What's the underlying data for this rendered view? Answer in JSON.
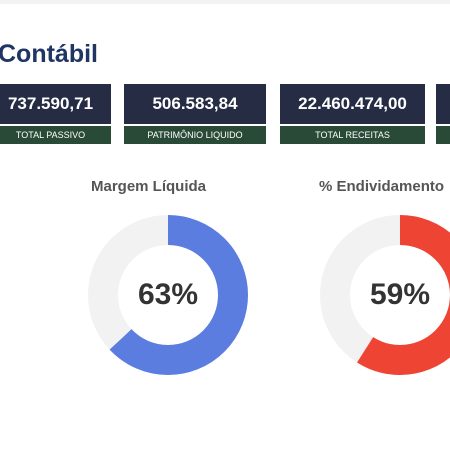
{
  "dashboard": {
    "title": "Contábil",
    "cards": [
      {
        "value": "737.590,71",
        "label": "TOTAL PASSIVO"
      },
      {
        "value": "506.583,84",
        "label": "PATRIMÔNIO LIQUIDO"
      },
      {
        "value": "22.460.474,00",
        "label": "TOTAL RECEITAS"
      }
    ],
    "gauges": [
      {
        "title": "Margem Líquida",
        "percent_label": "63%",
        "value": 0.63,
        "color": "#5b7de0"
      },
      {
        "title": "% Endividamento",
        "percent_label": "59%",
        "value": 0.59,
        "color": "#ee4433"
      }
    ],
    "colors": {
      "title": "#1f3564",
      "card_value_bg": "#262c44",
      "card_label_bg": "#2a4a38",
      "gauge_track": "#f2f2f2"
    }
  }
}
